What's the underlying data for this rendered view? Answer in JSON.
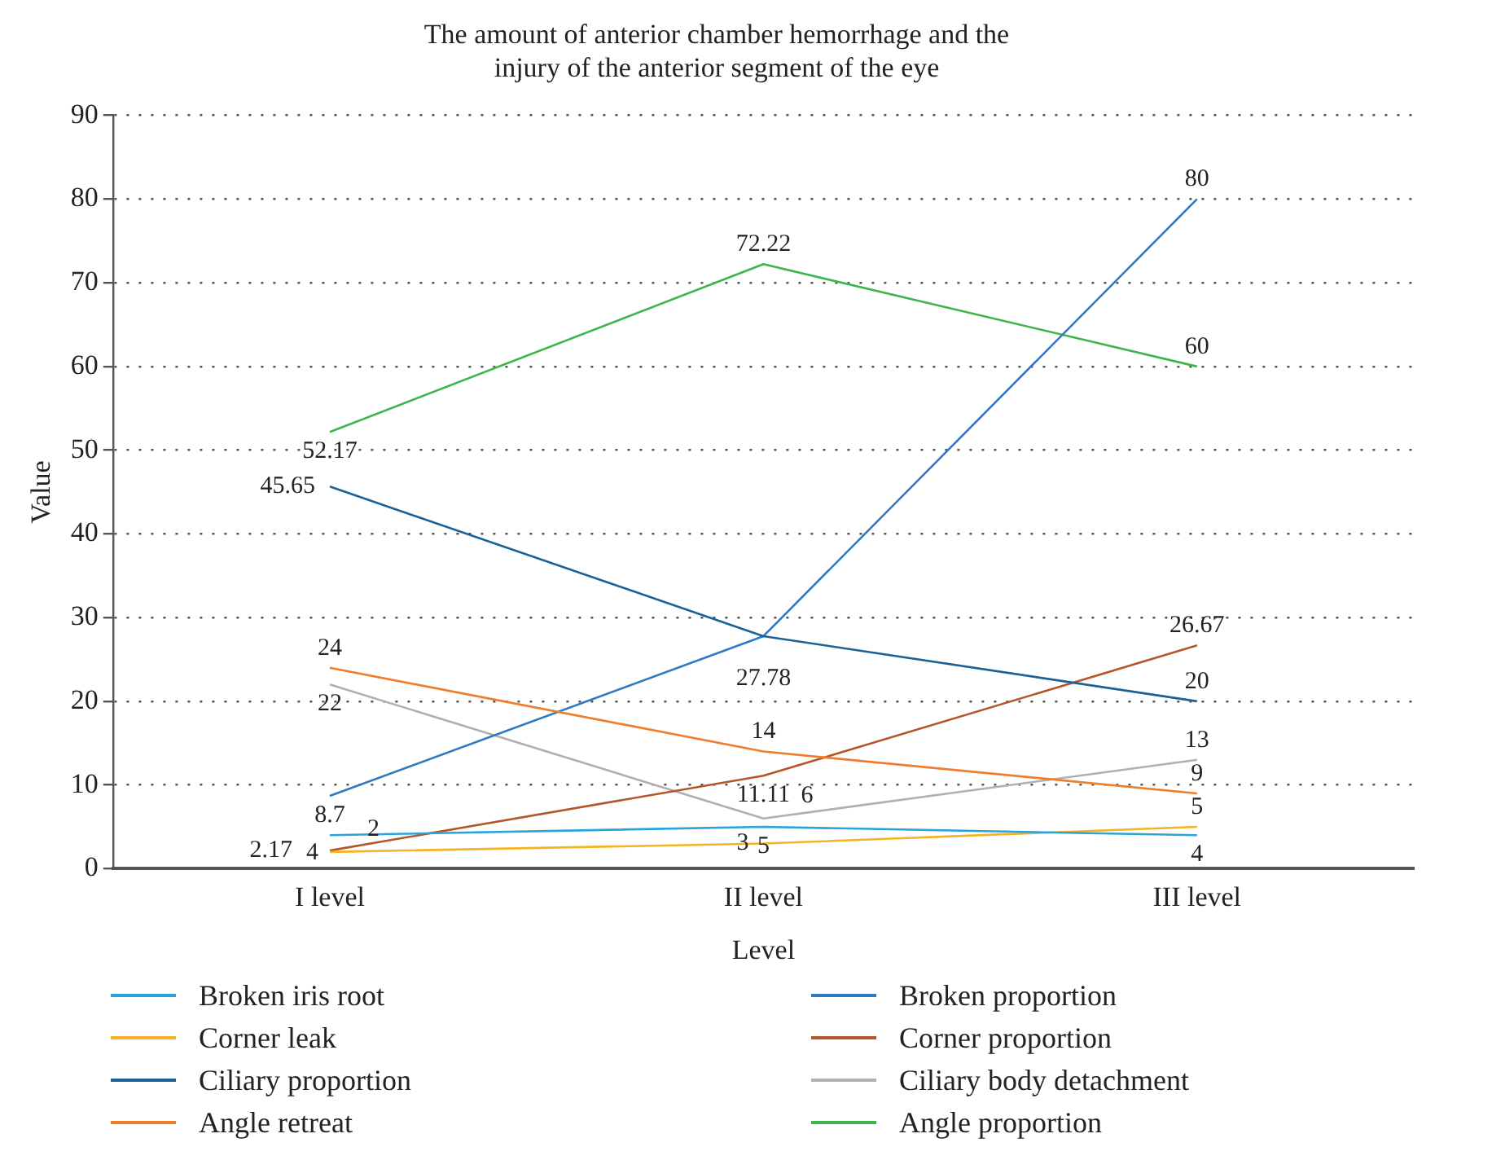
{
  "chart_data": {
    "type": "line",
    "title": "The amount of anterior chamber hemorrhage and the injury of the anterior segment of the eye",
    "xlabel": "Level",
    "ylabel": "Value",
    "categories": [
      "I level",
      "II level",
      "III level"
    ],
    "ylim": [
      0,
      90
    ],
    "yticks": [
      0,
      10,
      20,
      30,
      40,
      50,
      60,
      70,
      80,
      90
    ],
    "grid": "y",
    "legend": "bottom",
    "marker": "none",
    "line_style": "solid",
    "series": [
      {
        "name": "Broken iris root",
        "color": "#29a3dc",
        "values": [
          4,
          5,
          4
        ],
        "value_labels": [
          "4",
          "5",
          "4"
        ]
      },
      {
        "name": "Corner leak",
        "color": "#f5b323",
        "values": [
          2,
          3,
          5
        ],
        "value_labels": [
          "2",
          "3",
          "5"
        ]
      },
      {
        "name": "Ciliary proportion",
        "color": "#1b6196",
        "values": [
          45.65,
          27.78,
          20
        ],
        "value_labels": [
          "45.65",
          null,
          "20"
        ]
      },
      {
        "name": "Angle retreat",
        "color": "#f07d2c",
        "values": [
          24,
          14,
          9
        ],
        "value_labels": [
          "24",
          "14",
          "9"
        ]
      },
      {
        "name": "Broken proportion",
        "color": "#2f79c4",
        "values": [
          8.7,
          27.78,
          80
        ],
        "value_labels": [
          "8.7",
          "27.78",
          "80"
        ]
      },
      {
        "name": "Corner proportion",
        "color": "#b4552a",
        "values": [
          2.17,
          11.11,
          26.67
        ],
        "value_labels": [
          "2.17",
          "11.11",
          "26.67"
        ]
      },
      {
        "name": "Ciliary body detachment",
        "color": "#b0b0b0",
        "values": [
          22,
          6,
          13
        ],
        "value_labels": [
          "22",
          "6",
          "13"
        ]
      },
      {
        "name": "Angle proportion",
        "color": "#3cb54a",
        "values": [
          52.17,
          72.22,
          60
        ],
        "value_labels": [
          "52.17",
          "72.22",
          "60"
        ]
      }
    ]
  }
}
